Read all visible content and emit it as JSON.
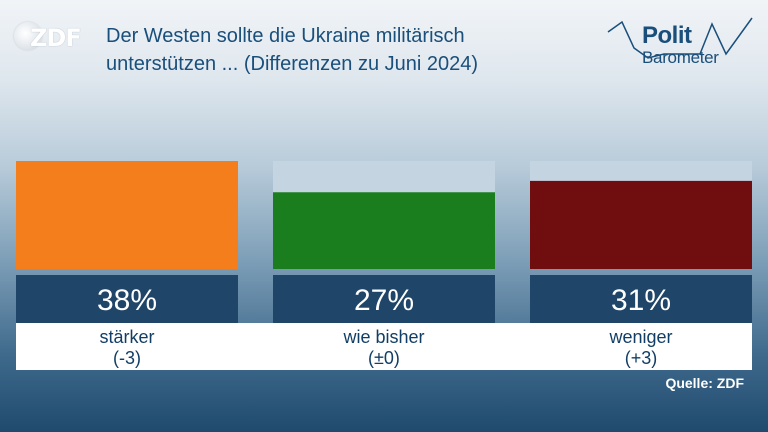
{
  "header": {
    "logo_text": "ZDF",
    "title_line1": "Der Westen sollte die Ukraine militärisch",
    "title_line2": "unterstützen ... (Differenzen zu Juni 2024)",
    "brand_line1": "Polit",
    "brand_line2": "Barometer"
  },
  "colors": {
    "title": "#1a4f7b",
    "bar_background": "#c4d4e0",
    "value_box": "#1f4569",
    "label_box": "#ffffff"
  },
  "chart_data": {
    "type": "bar",
    "title": "Der Westen sollte die Ukraine militärisch unterstützen ... (Differenzen zu Juni 2024)",
    "ylim": [
      0,
      38
    ],
    "categories": [
      "stärker",
      "wie bisher",
      "weniger"
    ],
    "changes": [
      "(-3)",
      "(±0)",
      "(+3)"
    ],
    "values": [
      38,
      27,
      31
    ],
    "value_labels": [
      "38%",
      "27%",
      "31%"
    ],
    "colors": [
      "#f47e1c",
      "#1a7d1e",
      "#700d0f"
    ]
  },
  "footer": {
    "source": "Quelle: ZDF"
  }
}
